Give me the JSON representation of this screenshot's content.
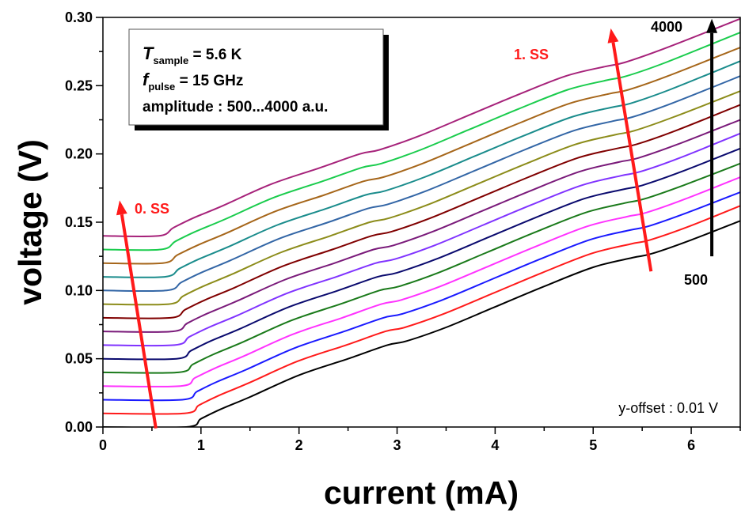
{
  "chart_data": {
    "type": "line",
    "title": "",
    "xlabel": "current (mA)",
    "ylabel": "voltage (V)",
    "xlim": [
      0,
      6.5
    ],
    "ylim": [
      0,
      0.3
    ],
    "x_ticks": [
      "0",
      "1",
      "2",
      "3",
      "4",
      "5",
      "6"
    ],
    "y_ticks": [
      "0.00",
      "0.05",
      "0.10",
      "0.15",
      "0.20",
      "0.25",
      "0.30"
    ],
    "grid": false,
    "legend_box": {
      "line1_symbol": "T",
      "line1_sub": "sample",
      "line1_rest": " = 5.6 K",
      "line2_symbol": "f",
      "line2_sub": "pulse",
      "line2_rest": " = 15 GHz",
      "line3": "amplitude : 500...4000 a.u."
    },
    "annotations": {
      "ss0": "0. SS",
      "ss1": "1. SS",
      "amp_high": "4000",
      "amp_low": "500",
      "offset_note": "y-offset : 0.01 V",
      "ss_arrow_color": "#ff1a1a",
      "amp_arrow_color": "#000000"
    },
    "series": [
      {
        "color": "#000000",
        "x": [
          0,
          0.85,
          1,
          1.2,
          1.5,
          2,
          2.5,
          2.9,
          3.1,
          3.5,
          4,
          4.5,
          5,
          5.4,
          5.6,
          6,
          6.5
        ],
        "y": [
          0,
          0,
          0.006,
          0.013,
          0.022,
          0.038,
          0.05,
          0.06,
          0.063,
          0.073,
          0.088,
          0.103,
          0.117,
          0.124,
          0.127,
          0.137,
          0.151
        ]
      },
      {
        "color": "#ff1a1a",
        "x": [
          0,
          0.83,
          0.98,
          1.18,
          1.48,
          1.98,
          2.48,
          2.88,
          3.08,
          3.48,
          3.98,
          4.48,
          4.98,
          5.38,
          5.58,
          5.98,
          6.5
        ],
        "y": [
          0.01,
          0.01,
          0.016,
          0.023,
          0.032,
          0.048,
          0.06,
          0.07,
          0.073,
          0.083,
          0.098,
          0.113,
          0.127,
          0.134,
          0.137,
          0.147,
          0.162
        ]
      },
      {
        "color": "#1a1aff",
        "x": [
          0,
          0.81,
          0.96,
          1.16,
          1.46,
          1.96,
          2.46,
          2.86,
          3.06,
          3.46,
          3.96,
          4.46,
          4.96,
          5.36,
          5.56,
          5.96,
          6.5
        ],
        "y": [
          0.02,
          0.02,
          0.026,
          0.033,
          0.042,
          0.058,
          0.07,
          0.08,
          0.083,
          0.093,
          0.108,
          0.123,
          0.137,
          0.144,
          0.147,
          0.157,
          0.172
        ]
      },
      {
        "color": "#ff33ff",
        "x": [
          0,
          0.79,
          0.94,
          1.14,
          1.44,
          1.94,
          2.44,
          2.84,
          3.04,
          3.44,
          3.94,
          4.44,
          4.94,
          5.34,
          5.54,
          5.94,
          6.5
        ],
        "y": [
          0.03,
          0.03,
          0.036,
          0.043,
          0.052,
          0.068,
          0.08,
          0.09,
          0.093,
          0.103,
          0.118,
          0.133,
          0.147,
          0.154,
          0.157,
          0.167,
          0.183
        ]
      },
      {
        "color": "#1a7a1a",
        "x": [
          0,
          0.77,
          0.92,
          1.12,
          1.42,
          1.92,
          2.42,
          2.82,
          3.02,
          3.42,
          3.92,
          4.42,
          4.92,
          5.32,
          5.52,
          5.92,
          6.5
        ],
        "y": [
          0.04,
          0.04,
          0.046,
          0.053,
          0.062,
          0.078,
          0.09,
          0.1,
          0.103,
          0.113,
          0.128,
          0.143,
          0.157,
          0.164,
          0.167,
          0.177,
          0.193
        ]
      },
      {
        "color": "#0a0a6e",
        "x": [
          0,
          0.75,
          0.9,
          1.1,
          1.4,
          1.9,
          2.4,
          2.8,
          3,
          3.4,
          3.9,
          4.4,
          4.9,
          5.3,
          5.5,
          5.9,
          6.5
        ],
        "y": [
          0.05,
          0.05,
          0.056,
          0.063,
          0.072,
          0.088,
          0.1,
          0.11,
          0.113,
          0.123,
          0.138,
          0.153,
          0.167,
          0.174,
          0.177,
          0.187,
          0.204
        ]
      },
      {
        "color": "#8033ff",
        "x": [
          0,
          0.73,
          0.88,
          1.08,
          1.38,
          1.88,
          2.38,
          2.78,
          2.98,
          3.38,
          3.88,
          4.38,
          4.88,
          5.28,
          5.48,
          5.88,
          6.5
        ],
        "y": [
          0.06,
          0.06,
          0.066,
          0.073,
          0.082,
          0.098,
          0.11,
          0.12,
          0.123,
          0.133,
          0.148,
          0.163,
          0.177,
          0.184,
          0.187,
          0.197,
          0.215
        ]
      },
      {
        "color": "#7a1a7a",
        "x": [
          0,
          0.71,
          0.86,
          1.06,
          1.36,
          1.86,
          2.36,
          2.76,
          2.96,
          3.36,
          3.86,
          4.36,
          4.86,
          5.26,
          5.46,
          5.86,
          6.5
        ],
        "y": [
          0.07,
          0.07,
          0.076,
          0.083,
          0.092,
          0.108,
          0.12,
          0.13,
          0.133,
          0.143,
          0.158,
          0.173,
          0.187,
          0.194,
          0.197,
          0.207,
          0.225
        ]
      },
      {
        "color": "#800000",
        "x": [
          0,
          0.69,
          0.84,
          1.04,
          1.34,
          1.84,
          2.34,
          2.74,
          2.94,
          3.34,
          3.84,
          4.34,
          4.84,
          5.24,
          5.44,
          5.84,
          6.5
        ],
        "y": [
          0.08,
          0.08,
          0.086,
          0.093,
          0.102,
          0.118,
          0.13,
          0.14,
          0.143,
          0.153,
          0.168,
          0.183,
          0.197,
          0.204,
          0.207,
          0.217,
          0.236
        ]
      },
      {
        "color": "#8c8c1a",
        "x": [
          0,
          0.67,
          0.82,
          1.02,
          1.32,
          1.82,
          2.32,
          2.72,
          2.92,
          3.32,
          3.82,
          4.32,
          4.82,
          5.22,
          5.42,
          5.82,
          6.5
        ],
        "y": [
          0.09,
          0.09,
          0.096,
          0.103,
          0.112,
          0.128,
          0.14,
          0.15,
          0.153,
          0.163,
          0.178,
          0.193,
          0.207,
          0.214,
          0.217,
          0.227,
          0.246
        ]
      },
      {
        "color": "#3366a6",
        "x": [
          0,
          0.65,
          0.8,
          1,
          1.3,
          1.8,
          2.3,
          2.7,
          2.9,
          3.3,
          3.8,
          4.3,
          4.8,
          5.2,
          5.4,
          5.8,
          6.5
        ],
        "y": [
          0.1,
          0.1,
          0.106,
          0.113,
          0.122,
          0.138,
          0.15,
          0.16,
          0.163,
          0.173,
          0.188,
          0.203,
          0.217,
          0.224,
          0.227,
          0.237,
          0.257
        ]
      },
      {
        "color": "#1a8c8c",
        "x": [
          0,
          0.63,
          0.78,
          0.98,
          1.28,
          1.78,
          2.28,
          2.68,
          2.88,
          3.28,
          3.78,
          4.28,
          4.78,
          5.18,
          5.38,
          5.78,
          6.5
        ],
        "y": [
          0.11,
          0.11,
          0.116,
          0.123,
          0.132,
          0.148,
          0.16,
          0.17,
          0.173,
          0.183,
          0.198,
          0.213,
          0.227,
          0.234,
          0.237,
          0.247,
          0.268
        ]
      },
      {
        "color": "#a6661a",
        "x": [
          0,
          0.61,
          0.76,
          0.96,
          1.26,
          1.76,
          2.26,
          2.66,
          2.86,
          3.26,
          3.76,
          4.26,
          4.76,
          5.16,
          5.36,
          5.76,
          6.5
        ],
        "y": [
          0.12,
          0.12,
          0.126,
          0.133,
          0.142,
          0.158,
          0.17,
          0.18,
          0.183,
          0.193,
          0.208,
          0.223,
          0.237,
          0.244,
          0.247,
          0.257,
          0.278
        ]
      },
      {
        "color": "#1acc4d",
        "x": [
          0,
          0.59,
          0.74,
          0.94,
          1.24,
          1.74,
          2.24,
          2.64,
          2.84,
          3.24,
          3.74,
          4.24,
          4.74,
          5.14,
          5.34,
          5.74,
          6.5
        ],
        "y": [
          0.13,
          0.13,
          0.136,
          0.143,
          0.152,
          0.168,
          0.18,
          0.19,
          0.193,
          0.203,
          0.218,
          0.233,
          0.247,
          0.254,
          0.257,
          0.267,
          0.289
        ]
      },
      {
        "color": "#a6227a",
        "x": [
          0,
          0.57,
          0.72,
          0.92,
          1.22,
          1.72,
          2.22,
          2.62,
          2.82,
          3.22,
          3.72,
          4.22,
          4.72,
          5.12,
          5.32,
          5.72,
          6.5
        ],
        "y": [
          0.14,
          0.14,
          0.146,
          0.153,
          0.162,
          0.178,
          0.19,
          0.2,
          0.203,
          0.213,
          0.228,
          0.243,
          0.257,
          0.264,
          0.267,
          0.277,
          0.299
        ]
      }
    ]
  }
}
